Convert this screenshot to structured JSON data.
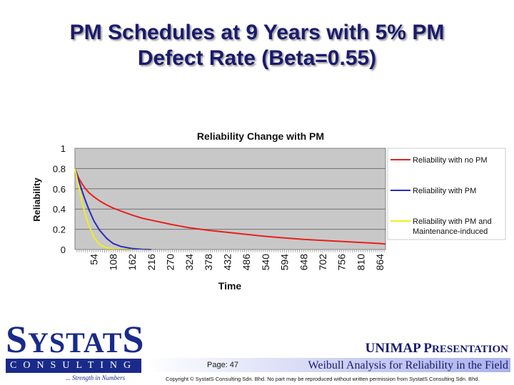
{
  "slide": {
    "title_line1": "PM Schedules at 9 Years with 5% PM",
    "title_line2": "Defect Rate (Beta=0.55)"
  },
  "chart_data": {
    "type": "line",
    "title": "Reliability Change with PM",
    "xlabel": "Time",
    "ylabel": "Reliability",
    "categories": [
      "54",
      "108",
      "162",
      "216",
      "270",
      "324",
      "378",
      "432",
      "486",
      "540",
      "594",
      "648",
      "702",
      "756",
      "810",
      "864"
    ],
    "yticks": [
      "0",
      "0.2",
      "0.4",
      "0.6",
      "0.8",
      "1"
    ],
    "ylim": [
      0,
      1
    ],
    "xlim": [
      0,
      880
    ],
    "grid": true,
    "legend_position": "right",
    "series": [
      {
        "name": "Reliability with no PM",
        "color": "#e8201c",
        "x": [
          0,
          10,
          20,
          30,
          40,
          54,
          70,
          90,
          108,
          130,
          162,
          190,
          216,
          250,
          270,
          300,
          324,
          378,
          432,
          486,
          540,
          594,
          648,
          702,
          756,
          810,
          864,
          880
        ],
        "y": [
          0.8,
          0.71,
          0.65,
          0.6,
          0.56,
          0.52,
          0.48,
          0.44,
          0.41,
          0.38,
          0.34,
          0.31,
          0.29,
          0.265,
          0.25,
          0.23,
          0.215,
          0.19,
          0.17,
          0.15,
          0.13,
          0.115,
          0.1,
          0.09,
          0.08,
          0.07,
          0.06,
          0.055
        ]
      },
      {
        "name": "Reliability with PM",
        "color": "#2a2ab8",
        "x": [
          0,
          10,
          20,
          30,
          40,
          54,
          70,
          90,
          108,
          130,
          162,
          190,
          216
        ],
        "y": [
          0.8,
          0.69,
          0.58,
          0.48,
          0.39,
          0.28,
          0.19,
          0.11,
          0.06,
          0.03,
          0.01,
          0.003,
          0.0
        ]
      },
      {
        "name": "Reliability with PM and Maintenance-induced",
        "color": "#f2ee1a",
        "x": [
          0,
          10,
          20,
          30,
          40,
          54,
          70,
          90,
          108,
          130,
          162
        ],
        "y": [
          0.8,
          0.63,
          0.47,
          0.34,
          0.23,
          0.12,
          0.05,
          0.015,
          0.004,
          0.001,
          0.0
        ]
      }
    ]
  },
  "footer": {
    "logo_main": "S",
    "logo_middle": "YSTAT",
    "logo_end": "S",
    "logo_sub": "CONSULTING",
    "tagline": "... Strength in Numbers",
    "presentation_big1": "UNIMAP P",
    "presentation_small": "RESENTATION",
    "page_label": "Page:  47",
    "subtitle": "Weibull Analysis for Reliability in the Field",
    "copyright": "Copyright © SystatS Consulting Sdn. Bhd.  No part may be reproduced without written permission from SystatS Consulting Sdn. Bhd."
  }
}
